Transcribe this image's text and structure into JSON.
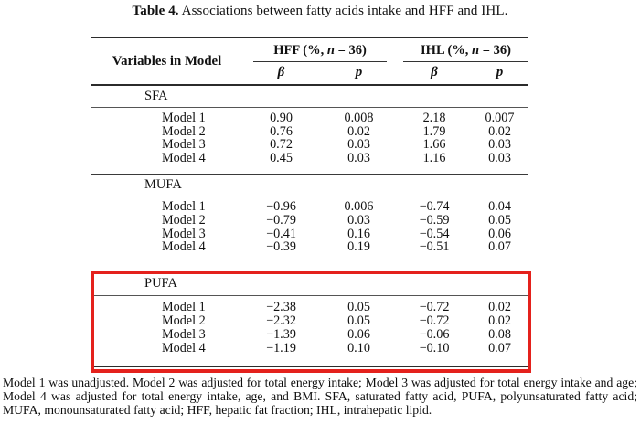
{
  "caption": {
    "label": "Table 4.",
    "text": " Associations between fatty acids intake and HFF and IHL."
  },
  "table": {
    "header": {
      "variables_label": "Variables in Model",
      "groups": [
        {
          "prefix": "HFF (%, ",
          "n": "n",
          "suffix": " = 36)"
        },
        {
          "prefix": "IHL (%, ",
          "n": "n",
          "suffix": " = 36)"
        }
      ],
      "sub_columns": [
        "β",
        "p",
        "β",
        "p"
      ]
    },
    "sections": [
      {
        "name": "SFA",
        "highlighted": false,
        "rows": [
          {
            "label": "Model 1",
            "values": [
              "0.90",
              "0.008",
              "2.18",
              "0.007"
            ]
          },
          {
            "label": "Model 2",
            "values": [
              "0.76",
              "0.02",
              "1.79",
              "0.02"
            ]
          },
          {
            "label": "Model 3",
            "values": [
              "0.72",
              "0.03",
              "1.66",
              "0.03"
            ]
          },
          {
            "label": "Model 4",
            "values": [
              "0.45",
              "0.03",
              "1.16",
              "0.03"
            ]
          }
        ]
      },
      {
        "name": "MUFA",
        "highlighted": false,
        "rows": [
          {
            "label": "Model 1",
            "values": [
              "−0.96",
              "0.006",
              "−0.74",
              "0.04"
            ]
          },
          {
            "label": "Model 2",
            "values": [
              "−0.79",
              "0.03",
              "−0.59",
              "0.05"
            ]
          },
          {
            "label": "Model 3",
            "values": [
              "−0.41",
              "0.16",
              "−0.54",
              "0.06"
            ]
          },
          {
            "label": "Model 4",
            "values": [
              "−0.39",
              "0.19",
              "−0.51",
              "0.07"
            ]
          }
        ]
      },
      {
        "name": "PUFA",
        "highlighted": true,
        "rows": [
          {
            "label": "Model 1",
            "values": [
              "−2.38",
              "0.05",
              "−0.72",
              "0.02"
            ]
          },
          {
            "label": "Model 2",
            "values": [
              "−2.32",
              "0.05",
              "−0.72",
              "0.02"
            ]
          },
          {
            "label": "Model 3",
            "values": [
              "−1.39",
              "0.06",
              "−0.06",
              "0.08"
            ]
          },
          {
            "label": "Model 4",
            "values": [
              "−1.19",
              "0.10",
              "−0.10",
              "0.07"
            ]
          }
        ]
      }
    ],
    "highlight_color": "#e4211c"
  },
  "footnote": "Model 1 was unadjusted. Model 2 was adjusted for total energy intake; Model 3 was adjusted for total energy intake and age; Model 4 was adjusted for total energy intake, age, and BMI. SFA, saturated fatty acid, PUFA, polyunsaturated fatty acid; MUFA, monounsaturated fatty acid; HFF, hepatic fat fraction; IHL, intrahepatic lipid."
}
